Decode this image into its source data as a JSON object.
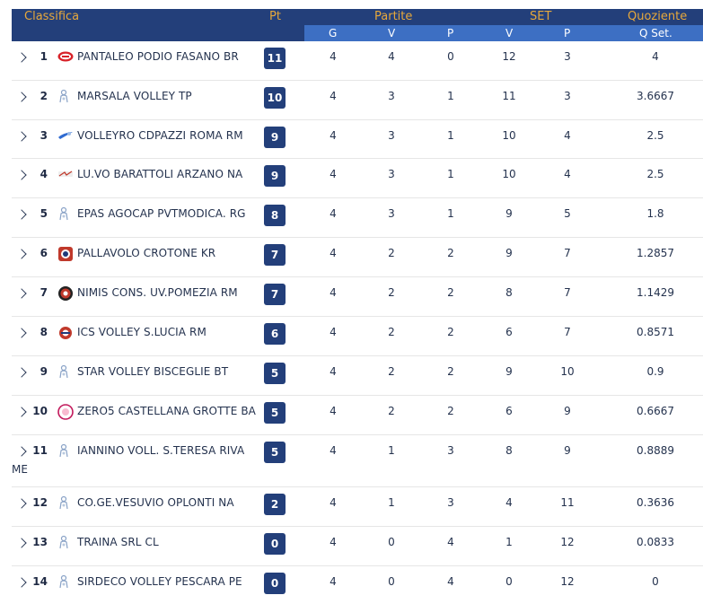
{
  "header": {
    "classifica": "Classifica",
    "pt": "Pt",
    "partite": "Partite",
    "set": "SET",
    "quoziente": "Quoziente",
    "g": "G",
    "v": "V",
    "p": "P",
    "set_v": "V",
    "set_p": "P",
    "qset": "Q Set."
  },
  "colors": {
    "header_dark": "#233f7a",
    "header_light": "#3d6fc3",
    "header_gold": "#e7a83b",
    "badge": "#233f7a"
  },
  "rows": [
    {
      "pos": "1",
      "team": "PANTALEO PODIO FASANO BR",
      "logo": "pantaleo-logo-icon",
      "pt": "11",
      "g": "4",
      "v": "4",
      "p": "0",
      "sv": "12",
      "sp": "3",
      "q": "4"
    },
    {
      "pos": "2",
      "team": "MARSALA VOLLEY TP",
      "logo": "generic-team-icon",
      "pt": "10",
      "g": "4",
      "v": "3",
      "p": "1",
      "sv": "11",
      "sp": "3",
      "q": "3.6667"
    },
    {
      "pos": "3",
      "team": "VOLLEYRO CDPAZZI ROMA RM",
      "logo": "volleyro-logo-icon",
      "pt": "9",
      "g": "4",
      "v": "3",
      "p": "1",
      "sv": "10",
      "sp": "4",
      "q": "2.5"
    },
    {
      "pos": "4",
      "team": "LU.VO BARATTOLI ARZANO NA",
      "logo": "luvo-logo-icon",
      "pt": "9",
      "g": "4",
      "v": "3",
      "p": "1",
      "sv": "10",
      "sp": "4",
      "q": "2.5"
    },
    {
      "pos": "5",
      "team": "EPAS AGOCAP PVTMODICA. RG",
      "logo": "generic-team-icon",
      "pt": "8",
      "g": "4",
      "v": "3",
      "p": "1",
      "sv": "9",
      "sp": "5",
      "q": "1.8"
    },
    {
      "pos": "6",
      "team": "PALLAVOLO CROTONE KR",
      "logo": "crotone-logo-icon",
      "pt": "7",
      "g": "4",
      "v": "2",
      "p": "2",
      "sv": "9",
      "sp": "7",
      "q": "1.2857"
    },
    {
      "pos": "7",
      "team": "NIMIS CONS. UV.POMEZIA RM",
      "logo": "pomezia-logo-icon",
      "pt": "7",
      "g": "4",
      "v": "2",
      "p": "2",
      "sv": "8",
      "sp": "7",
      "q": "1.1429"
    },
    {
      "pos": "8",
      "team": "ICS VOLLEY S.LUCIA RM",
      "logo": "ics-logo-icon",
      "pt": "6",
      "g": "4",
      "v": "2",
      "p": "2",
      "sv": "6",
      "sp": "7",
      "q": "0.8571"
    },
    {
      "pos": "9",
      "team": "STAR VOLLEY BISCEGLIE BT",
      "logo": "generic-team-icon",
      "pt": "5",
      "g": "4",
      "v": "2",
      "p": "2",
      "sv": "9",
      "sp": "10",
      "q": "0.9"
    },
    {
      "pos": "10",
      "team": "ZERO5 CASTELLANA GROTTE BA",
      "logo": "zero5-logo-icon",
      "pt": "5",
      "g": "4",
      "v": "2",
      "p": "2",
      "sv": "6",
      "sp": "9",
      "q": "0.6667"
    },
    {
      "pos": "11",
      "team": "IANNINO VOLL. S.TERESA RIVA",
      "team2": "ME",
      "logo": "generic-team-icon",
      "pt": "5",
      "g": "4",
      "v": "1",
      "p": "3",
      "sv": "8",
      "sp": "9",
      "q": "0.8889"
    },
    {
      "pos": "12",
      "team": "CO.GE.VESUVIO OPLONTI NA",
      "logo": "generic-team-icon",
      "pt": "2",
      "g": "4",
      "v": "1",
      "p": "3",
      "sv": "4",
      "sp": "11",
      "q": "0.3636"
    },
    {
      "pos": "13",
      "team": "TRAINA SRL CL",
      "logo": "generic-team-icon",
      "pt": "0",
      "g": "4",
      "v": "0",
      "p": "4",
      "sv": "1",
      "sp": "12",
      "q": "0.0833"
    },
    {
      "pos": "14",
      "team": "SIRDECO VOLLEY PESCARA PE",
      "logo": "generic-team-icon",
      "pt": "0",
      "g": "4",
      "v": "0",
      "p": "4",
      "sv": "0",
      "sp": "12",
      "q": "0"
    }
  ]
}
